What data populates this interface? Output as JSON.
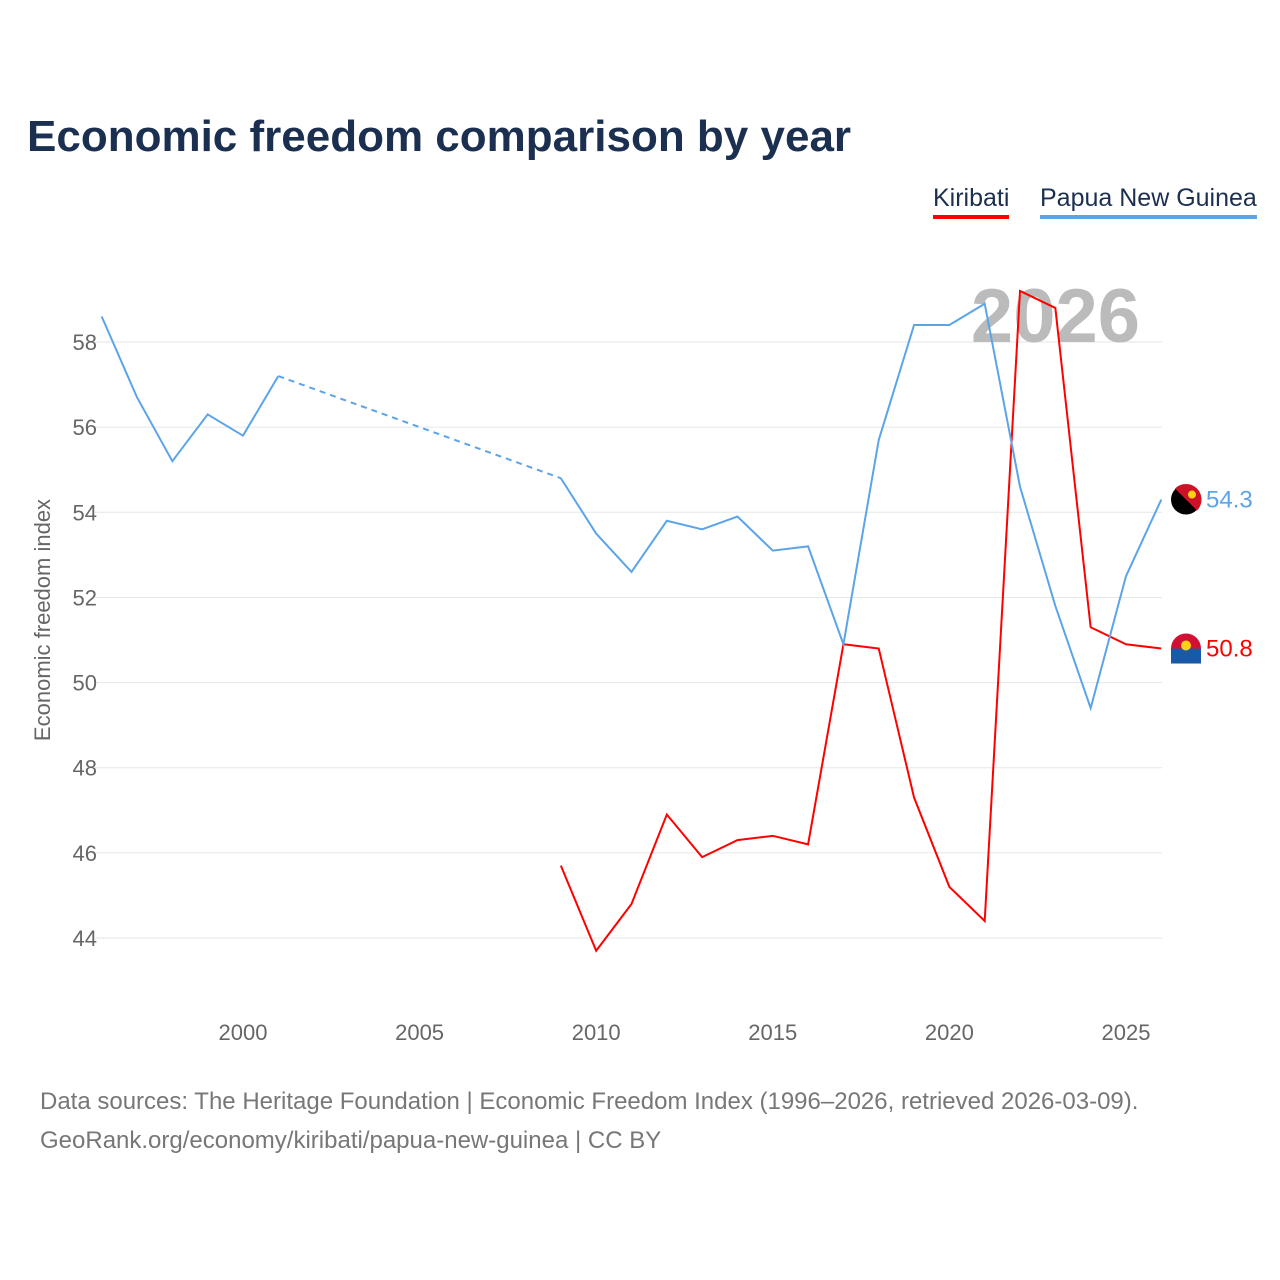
{
  "chart_data": {
    "type": "line",
    "title": "Economic freedom comparison by year",
    "ylabel": "Economic freedom index",
    "xlabel": "",
    "ylim": [
      44,
      58
    ],
    "xlim": [
      1996,
      2026
    ],
    "yticks": [
      44,
      46,
      48,
      50,
      52,
      54,
      56,
      58
    ],
    "xticks": [
      2000,
      2005,
      2010,
      2015,
      2020,
      2025
    ],
    "grid": true,
    "legend_position": "top-right",
    "annotation": "2026",
    "x": [
      1996,
      1997,
      1998,
      1999,
      2000,
      2001,
      2002,
      2003,
      2004,
      2005,
      2006,
      2007,
      2008,
      2009,
      2010,
      2011,
      2012,
      2013,
      2014,
      2015,
      2016,
      2017,
      2018,
      2019,
      2020,
      2021,
      2022,
      2023,
      2024,
      2025,
      2026
    ],
    "series": [
      {
        "name": "Kiribati",
        "color": "#ff0000",
        "end_label": "50.8",
        "flag": "kiribati-flag",
        "values": [
          null,
          null,
          null,
          null,
          null,
          null,
          null,
          null,
          null,
          null,
          null,
          null,
          null,
          45.7,
          43.7,
          44.8,
          46.9,
          45.9,
          46.3,
          46.4,
          46.2,
          50.9,
          50.8,
          47.3,
          45.2,
          44.4,
          59.2,
          58.8,
          51.3,
          50.9,
          50.8
        ]
      },
      {
        "name": "Papua New Guinea",
        "color": "#5ca4e8",
        "end_label": "54.3",
        "flag": "papua-new-guinea-flag",
        "values": [
          58.6,
          56.7,
          55.2,
          56.3,
          55.8,
          57.2,
          null,
          null,
          null,
          null,
          null,
          null,
          null,
          54.8,
          53.5,
          52.6,
          53.8,
          53.6,
          53.9,
          53.1,
          53.2,
          50.9,
          55.7,
          58.4,
          58.4,
          58.9,
          54.6,
          51.8,
          49.4,
          52.5,
          54.3
        ]
      }
    ]
  },
  "footer": {
    "line1": "Data sources: The Heritage Foundation | Economic Freedom Index (1996–2026, retrieved 2026-03-09).",
    "line2": "GeoRank.org/economy/kiribati/papua-new-guinea | CC BY"
  }
}
